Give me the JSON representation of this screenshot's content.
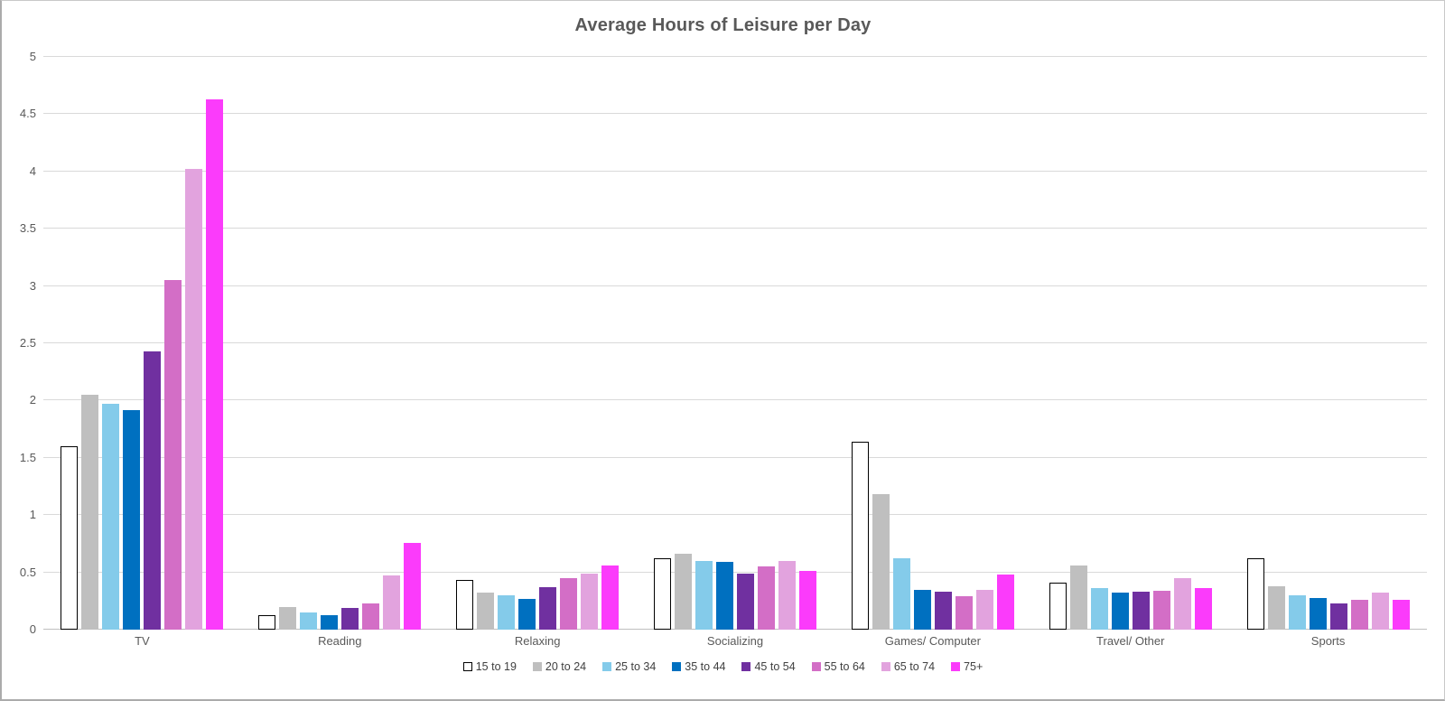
{
  "chart_data": {
    "type": "bar",
    "title": "Average Hours of Leisure per Day",
    "xlabel": "",
    "ylabel": "",
    "categories": [
      "TV",
      "Reading",
      "Relaxing",
      "Socializing",
      "Games/ Computer",
      "Travel/ Other",
      "Sports"
    ],
    "series": [
      {
        "name": "15 to 19",
        "color": "#FFFFFF",
        "border_color": "#000000",
        "values": [
          1.6,
          0.13,
          0.43,
          0.62,
          1.64,
          0.41,
          0.62
        ]
      },
      {
        "name": "20 to 24",
        "color": "#BFBFBF",
        "values": [
          2.05,
          0.2,
          0.32,
          0.66,
          1.18,
          0.56,
          0.38
        ]
      },
      {
        "name": "25 to 34",
        "color": "#84CBEA",
        "values": [
          1.97,
          0.15,
          0.3,
          0.6,
          0.62,
          0.36,
          0.3
        ]
      },
      {
        "name": "35 to 44",
        "color": "#0070C0",
        "values": [
          1.92,
          0.13,
          0.27,
          0.59,
          0.35,
          0.32,
          0.28
        ]
      },
      {
        "name": "45 to 54",
        "color": "#7030A0",
        "values": [
          2.43,
          0.19,
          0.37,
          0.49,
          0.33,
          0.33,
          0.23
        ]
      },
      {
        "name": "55 to 64",
        "color": "#D36EC6",
        "values": [
          3.05,
          0.23,
          0.45,
          0.55,
          0.29,
          0.34,
          0.26
        ]
      },
      {
        "name": "65 to 74",
        "color": "#E2A3DE",
        "values": [
          4.02,
          0.47,
          0.49,
          0.6,
          0.35,
          0.45,
          0.32
        ]
      },
      {
        "name": "75+",
        "color": "#FB3BFB",
        "values": [
          4.63,
          0.76,
          0.56,
          0.51,
          0.48,
          0.36,
          0.26
        ]
      }
    ],
    "ylim": [
      0,
      5
    ],
    "ytick_step": 0.5,
    "ytick_labels": [
      "0",
      "0.5",
      "1",
      "1.5",
      "2",
      "2.5",
      "3",
      "3.5",
      "4",
      "4.5",
      "5"
    ],
    "grid": true,
    "legend_position": "bottom"
  },
  "colors": {
    "gridline": "#D9D9D9",
    "axis_line": "#BFBFBF",
    "tick_text": "#595959",
    "category_text": "#595959",
    "legend_text": "#404040",
    "title_text": "#595959",
    "background": "#FFFFFF",
    "frame_border": "#ABABAB"
  }
}
